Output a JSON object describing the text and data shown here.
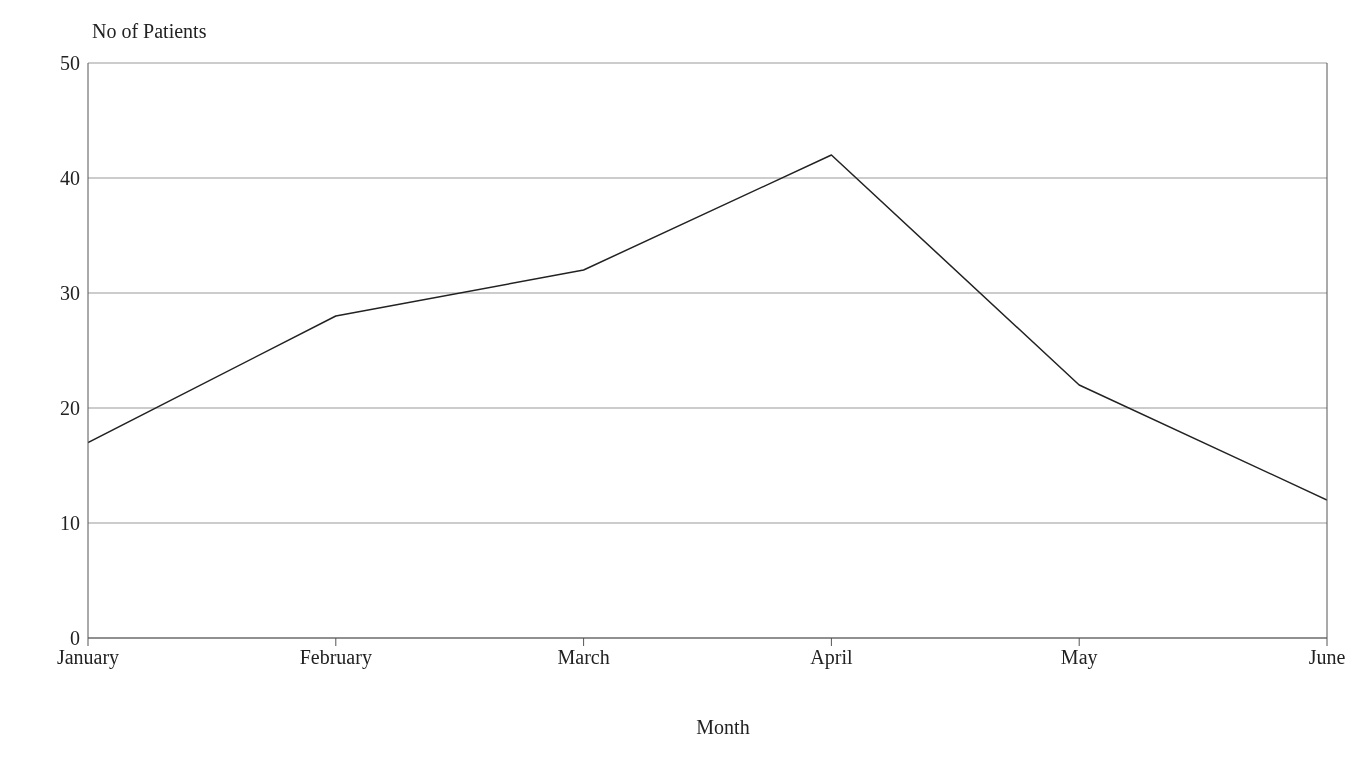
{
  "chart_data": {
    "type": "line",
    "xlabel": "Month",
    "ylabel": "No of Patients",
    "categories": [
      "January",
      "February",
      "March",
      "April",
      "May",
      "June"
    ],
    "series": [
      {
        "color": "#222222",
        "values": [
          17,
          28,
          32,
          42,
          22,
          12
        ]
      }
    ],
    "ylim": [
      0,
      50
    ],
    "yticks": [
      0,
      10,
      20,
      30,
      40,
      50
    ],
    "grid": "y",
    "marker": "none",
    "line_style": "solid"
  }
}
